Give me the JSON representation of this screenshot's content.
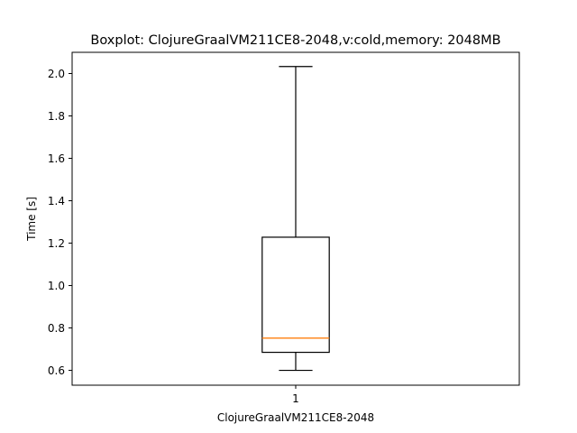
{
  "chart_data": {
    "type": "box",
    "title": "Boxplot: ClojureGraalVM211CE8-2048,v:cold,memory: 2048MB",
    "xlabel": "ClojureGraalVM211CE8-2048",
    "ylabel": "Time [s]",
    "categories": [
      "1"
    ],
    "ylim": [
      0.53,
      2.1
    ],
    "yticks": [
      0.6,
      0.8,
      1.0,
      1.2,
      1.4,
      1.6,
      1.8,
      2.0
    ],
    "ytick_labels": [
      "0.6",
      "0.8",
      "1.0",
      "1.2",
      "1.4",
      "1.6",
      "1.8",
      "2.0"
    ],
    "boxes": [
      {
        "category": "1",
        "whisker_low": 0.6,
        "q1": 0.685,
        "median": 0.752,
        "q3": 1.228,
        "whisker_high": 2.033
      }
    ],
    "grid": false,
    "colors": {
      "box": "#000000",
      "median": "#ff7f0e",
      "axes": "#000000",
      "background": "#ffffff"
    }
  }
}
